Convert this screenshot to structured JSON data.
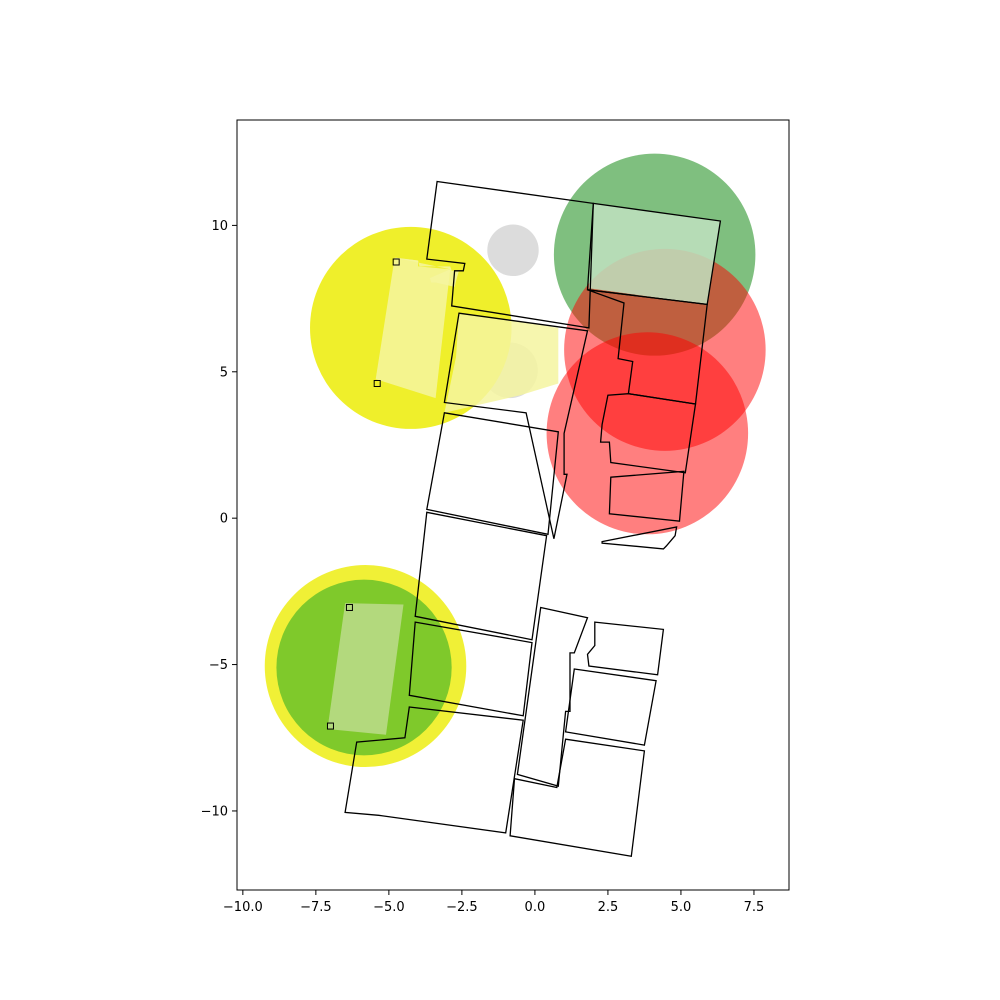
{
  "chart_data": {
    "type": "scatter",
    "title": "",
    "xlabel": "",
    "ylabel": "",
    "xlim": [
      -10.2,
      8.7
    ],
    "ylim": [
      -12.7,
      13.6
    ],
    "grid": false,
    "x_ticks": [
      {
        "value": -10.0,
        "label": "−10.0"
      },
      {
        "value": -7.5,
        "label": "−7.5"
      },
      {
        "value": -5.0,
        "label": "−5.0"
      },
      {
        "value": -2.5,
        "label": "−2.5"
      },
      {
        "value": 0.0,
        "label": "0.0"
      },
      {
        "value": 2.5,
        "label": "2.5"
      },
      {
        "value": 5.0,
        "label": "5.0"
      },
      {
        "value": 7.5,
        "label": "7.5"
      }
    ],
    "y_ticks": [
      {
        "value": 10,
        "label": "10"
      },
      {
        "value": 5,
        "label": "5"
      },
      {
        "value": 0,
        "label": "0"
      },
      {
        "value": -5,
        "label": "−5"
      },
      {
        "value": -10,
        "label": "−10"
      }
    ],
    "circles": [
      {
        "cx": -0.75,
        "cy": 9.15,
        "r": 0.88,
        "color": "#dcdcdc",
        "opacity": 1.0
      },
      {
        "cx": -0.85,
        "cy": 5.05,
        "r": 0.95,
        "color": "#dcdcdc",
        "opacity": 1.0
      },
      {
        "cx": -4.25,
        "cy": 6.5,
        "r": 3.45,
        "color": "#eeee20",
        "opacity": 0.95
      },
      {
        "cx": -5.8,
        "cy": -5.05,
        "r": 3.45,
        "color": "#eeee20",
        "opacity": 0.9
      },
      {
        "cx": -5.85,
        "cy": -5.1,
        "r": 3.0,
        "color": "#22aa22",
        "opacity": 0.55
      },
      {
        "cx": 4.1,
        "cy": 9.0,
        "r": 3.45,
        "color": "#008000",
        "opacity": 0.5
      },
      {
        "cx": 4.45,
        "cy": 5.75,
        "r": 3.45,
        "color": "#ff0000",
        "opacity": 0.5
      },
      {
        "cx": 3.85,
        "cy": 2.9,
        "r": 3.45,
        "color": "#ff0000",
        "opacity": 0.5
      }
    ],
    "shaded_rooms": [
      {
        "points": [
          [
            -4.8,
            8.9
          ],
          [
            -4.0,
            8.8
          ],
          [
            -3.95,
            8.6
          ],
          [
            -2.9,
            8.6
          ],
          [
            -2.85,
            8.45
          ],
          [
            -2.6,
            8.45
          ],
          [
            -2.7,
            8.1
          ],
          [
            -2.75,
            7.9
          ],
          [
            -3.4,
            8.05
          ],
          [
            -3.55,
            8.05
          ],
          [
            -3.6,
            8.2
          ],
          [
            -2.9,
            8.5
          ]
        ],
        "fill": "#f5f5a0"
      },
      {
        "points": [
          [
            -4.8,
            8.9
          ],
          [
            -4.0,
            8.8
          ],
          [
            -4.0,
            8.6
          ],
          [
            -2.9,
            8.5
          ],
          [
            -3.4,
            4.1
          ],
          [
            -5.45,
            4.75
          ]
        ],
        "fill": "#f5f5a0"
      },
      {
        "points": [
          [
            -6.5,
            -2.9
          ],
          [
            -4.5,
            -2.95
          ],
          [
            -5.1,
            -7.4
          ],
          [
            -7.1,
            -7.2
          ]
        ],
        "fill": "#bcdc8c"
      },
      {
        "points": [
          [
            2.0,
            10.75
          ],
          [
            6.35,
            10.15
          ],
          [
            5.9,
            7.3
          ],
          [
            1.85,
            7.85
          ]
        ],
        "fill": "#bfe0c0"
      },
      {
        "points": [
          [
            -2.6,
            7.0
          ],
          [
            -1.0,
            6.8
          ],
          [
            0.8,
            6.5
          ],
          [
            0.8,
            4.6
          ],
          [
            -0.5,
            4.2
          ],
          [
            -3.1,
            3.6
          ],
          [
            -2.7,
            5.5
          ]
        ],
        "fill": "#f5f5a0"
      }
    ],
    "rooms": [
      [
        [
          -3.35,
          11.5
        ],
        [
          2.0,
          10.75
        ],
        [
          1.85,
          6.5
        ],
        [
          -2.85,
          7.25
        ],
        [
          -2.75,
          8.45
        ],
        [
          -2.45,
          8.45
        ],
        [
          -2.4,
          8.7
        ],
        [
          -3.7,
          8.85
        ]
      ],
      [
        [
          2.0,
          10.75
        ],
        [
          6.35,
          10.15
        ],
        [
          5.9,
          7.3
        ],
        [
          1.8,
          7.8
        ]
      ],
      [
        [
          -2.6,
          7.0
        ],
        [
          1.8,
          6.4
        ],
        [
          1.0,
          2.9
        ],
        [
          1.0,
          1.5
        ],
        [
          1.1,
          1.5
        ],
        [
          0.65,
          -0.7
        ],
        [
          -0.3,
          3.6
        ],
        [
          -3.1,
          3.95
        ]
      ],
      [
        [
          1.8,
          7.8
        ],
        [
          5.9,
          7.3
        ],
        [
          5.5,
          3.9
        ],
        [
          3.2,
          4.25
        ],
        [
          3.35,
          5.35
        ],
        [
          2.85,
          5.45
        ],
        [
          3.05,
          7.35
        ],
        [
          1.8,
          7.8
        ]
      ],
      [
        [
          3.2,
          4.25
        ],
        [
          5.5,
          3.9
        ],
        [
          5.15,
          1.55
        ],
        [
          2.6,
          1.9
        ],
        [
          2.55,
          2.6
        ],
        [
          2.25,
          2.6
        ],
        [
          2.3,
          3.2
        ],
        [
          2.5,
          4.2
        ]
      ],
      [
        [
          2.6,
          1.4
        ],
        [
          5.1,
          1.6
        ],
        [
          4.95,
          -0.1
        ],
        [
          2.55,
          0.15
        ]
      ],
      [
        [
          2.3,
          -0.8
        ],
        [
          4.85,
          -0.3
        ],
        [
          4.8,
          -0.6
        ],
        [
          4.5,
          -0.95
        ],
        [
          4.4,
          -1.05
        ],
        [
          2.3,
          -0.85
        ]
      ],
      [
        [
          -3.1,
          3.6
        ],
        [
          0.8,
          2.95
        ],
        [
          0.45,
          -0.55
        ],
        [
          -3.7,
          0.3
        ]
      ],
      [
        [
          -3.7,
          0.2
        ],
        [
          0.4,
          -0.6
        ],
        [
          -0.1,
          -4.15
        ],
        [
          -4.1,
          -3.35
        ]
      ],
      [
        [
          -4.1,
          -3.55
        ],
        [
          -0.1,
          -4.25
        ],
        [
          -0.4,
          -6.75
        ],
        [
          -4.3,
          -6.05
        ]
      ],
      [
        [
          -4.3,
          -6.45
        ],
        [
          -0.4,
          -6.9
        ],
        [
          -1.0,
          -10.75
        ],
        [
          -5.35,
          -10.15
        ],
        [
          -6.5,
          -10.05
        ],
        [
          -6.1,
          -7.65
        ],
        [
          -4.45,
          -7.5
        ]
      ],
      [
        [
          0.2,
          -3.05
        ],
        [
          1.8,
          -3.4
        ],
        [
          1.35,
          -4.6
        ],
        [
          1.2,
          -4.6
        ],
        [
          1.2,
          -6.6
        ],
        [
          1.05,
          -6.6
        ],
        [
          0.8,
          -9.15
        ],
        [
          -0.6,
          -8.75
        ]
      ],
      [
        [
          2.05,
          -3.55
        ],
        [
          4.4,
          -3.8
        ],
        [
          4.2,
          -5.35
        ],
        [
          1.85,
          -5.05
        ],
        [
          1.8,
          -4.65
        ],
        [
          2.05,
          -4.35
        ]
      ],
      [
        [
          1.35,
          -5.15
        ],
        [
          4.15,
          -5.55
        ],
        [
          3.75,
          -7.75
        ],
        [
          1.05,
          -7.3
        ]
      ],
      [
        [
          1.05,
          -7.55
        ],
        [
          3.75,
          -7.95
        ],
        [
          3.3,
          -11.55
        ],
        [
          -0.85,
          -10.85
        ],
        [
          -0.7,
          -8.9
        ],
        [
          0.75,
          -9.2
        ]
      ]
    ],
    "markers": [
      [
        -4.75,
        8.75
      ],
      [
        -5.4,
        4.6
      ],
      [
        -6.35,
        -3.05
      ],
      [
        -7.0,
        -7.1
      ]
    ]
  }
}
